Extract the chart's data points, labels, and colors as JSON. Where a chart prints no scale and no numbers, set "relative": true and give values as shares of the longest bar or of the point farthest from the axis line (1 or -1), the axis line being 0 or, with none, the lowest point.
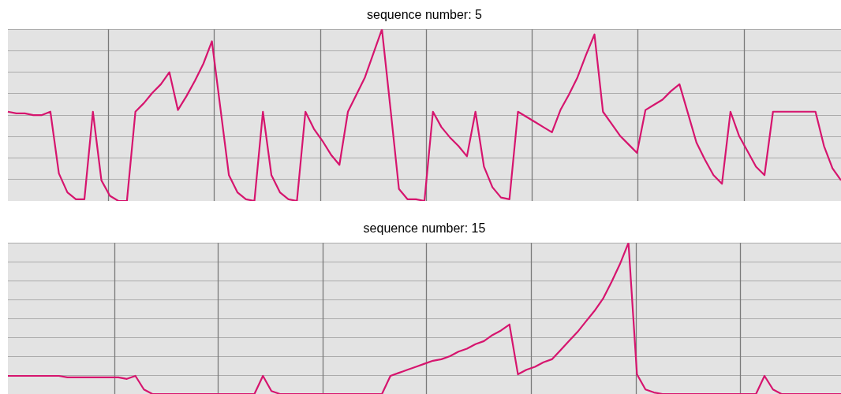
{
  "chart_data": [
    {
      "type": "line",
      "title": "sequence number: 5",
      "relative": true,
      "grid": true,
      "legend": false,
      "marker": "none",
      "line_style": "solid",
      "categories": [
        null,
        null,
        null,
        null,
        null,
        null,
        null,
        null,
        null,
        null,
        null,
        null,
        null,
        null,
        null,
        null,
        null,
        null,
        null,
        null,
        null,
        null,
        null,
        null,
        null,
        null,
        null,
        null,
        null,
        null,
        null,
        null,
        null,
        null,
        null,
        null,
        null,
        null,
        null,
        null,
        null,
        null,
        null,
        null,
        null,
        null,
        null,
        null,
        null,
        null,
        null,
        null,
        null,
        null,
        null,
        null,
        null,
        null,
        null,
        null,
        null,
        null,
        null,
        null,
        null,
        null,
        null,
        null,
        null,
        null,
        null,
        null,
        null,
        null,
        null,
        null,
        null,
        null,
        null,
        null,
        null,
        null,
        null,
        null,
        null,
        null,
        null,
        null,
        null,
        null,
        null,
        null,
        null,
        null,
        null,
        null,
        null,
        null,
        null
      ],
      "series": [
        {
          "color": "#d6156e",
          "values": [
            0.52,
            0.51,
            0.51,
            0.5,
            0.5,
            0.52,
            0.16,
            0.05,
            0.01,
            0.01,
            0.52,
            0.12,
            0.03,
            0,
            0,
            0.52,
            0.57,
            0.63,
            0.68,
            0.75,
            0.53,
            0.61,
            0.7,
            0.8,
            0.93,
            0.54,
            0.15,
            0.05,
            0.01,
            0,
            0.52,
            0.15,
            0.05,
            0.01,
            0,
            0.52,
            0.42,
            0.35,
            0.27,
            0.21,
            0.52,
            0.62,
            0.72,
            0.86,
            1,
            0.54,
            0.07,
            0.01,
            0.01,
            0,
            0.52,
            0.43,
            0.37,
            0.32,
            0.26,
            0.52,
            0.2,
            0.08,
            0.02,
            0.01,
            0.52,
            0.49,
            0.46,
            0.43,
            0.4,
            0.53,
            0.62,
            0.72,
            0.85,
            0.97,
            0.52,
            0.45,
            0.38,
            0.33,
            0.28,
            0.53,
            0.56,
            0.59,
            0.64,
            0.68,
            0.51,
            0.34,
            0.24,
            0.15,
            0.1,
            0.52,
            0.38,
            0.29,
            0.2,
            0.15,
            0.52,
            0.52,
            0.52,
            0.52,
            0.52,
            0.52,
            0.32,
            0.19,
            0.12
          ]
        }
      ]
    },
    {
      "type": "line",
      "title": "sequence number: 15",
      "relative": true,
      "grid": true,
      "legend": false,
      "marker": "none",
      "line_style": "solid",
      "categories": [
        null,
        null,
        null,
        null,
        null,
        null,
        null,
        null,
        null,
        null,
        null,
        null,
        null,
        null,
        null,
        null,
        null,
        null,
        null,
        null,
        null,
        null,
        null,
        null,
        null,
        null,
        null,
        null,
        null,
        null,
        null,
        null,
        null,
        null,
        null,
        null,
        null,
        null,
        null,
        null,
        null,
        null,
        null,
        null,
        null,
        null,
        null,
        null,
        null,
        null,
        null,
        null,
        null,
        null,
        null,
        null,
        null,
        null,
        null,
        null,
        null,
        null,
        null,
        null,
        null,
        null,
        null,
        null,
        null,
        null,
        null,
        null,
        null,
        null,
        null,
        null,
        null,
        null,
        null,
        null,
        null,
        null,
        null,
        null,
        null,
        null,
        null,
        null,
        null,
        null,
        null,
        null,
        null,
        null,
        null,
        null,
        null,
        null,
        null
      ],
      "series": [
        {
          "color": "#d6156e",
          "values": [
            0.12,
            0.12,
            0.12,
            0.12,
            0.12,
            0.12,
            0.12,
            0.11,
            0.11,
            0.11,
            0.11,
            0.11,
            0.11,
            0.11,
            0.1,
            0.12,
            0.03,
            0,
            0,
            0,
            0,
            0,
            0,
            0,
            0,
            0,
            0,
            0,
            0,
            0,
            0.12,
            0.02,
            0,
            0,
            0,
            0,
            0,
            0,
            0,
            0,
            0,
            0,
            0,
            0,
            0,
            0.12,
            0.14,
            0.16,
            0.18,
            0.2,
            0.22,
            0.23,
            0.25,
            0.28,
            0.3,
            0.33,
            0.35,
            0.39,
            0.42,
            0.46,
            0.13,
            0.16,
            0.18,
            0.21,
            0.23,
            0.29,
            0.35,
            0.41,
            0.48,
            0.55,
            0.63,
            0.74,
            0.86,
            1,
            0.13,
            0.03,
            0.01,
            0,
            0,
            0,
            0,
            0,
            0,
            0,
            0,
            0,
            0,
            0,
            0,
            0.12,
            0.03,
            0,
            0,
            0,
            0,
            0,
            0,
            0,
            0
          ]
        }
      ]
    }
  ]
}
